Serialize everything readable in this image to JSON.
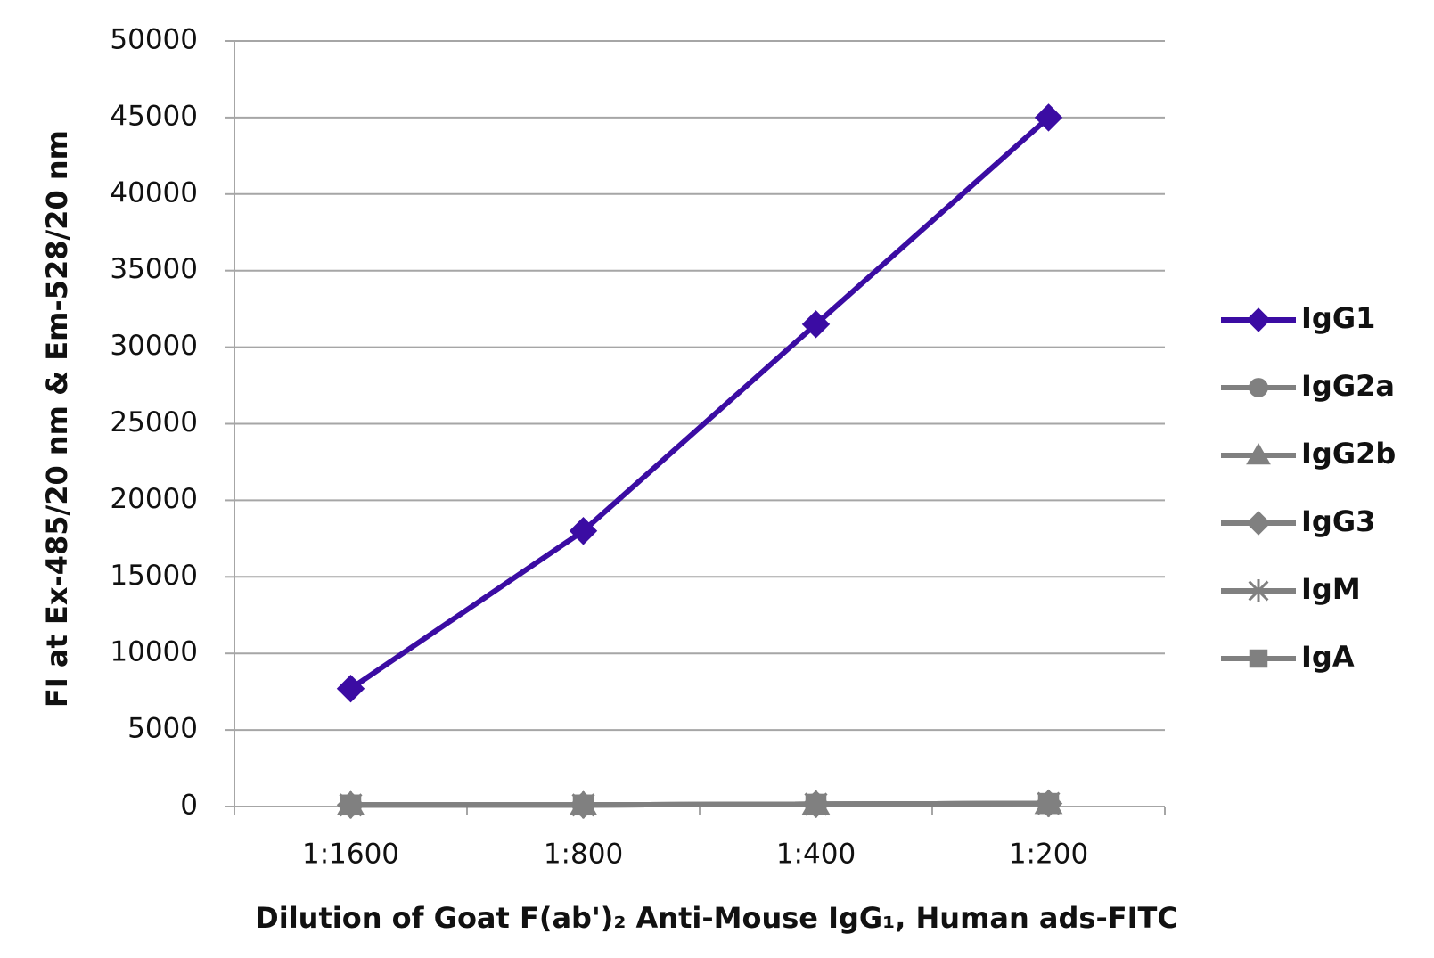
{
  "chart_data": {
    "type": "line",
    "x_label": "Dilution of Goat F(ab')₂ Anti-Mouse IgG₁, Human ads-FITC",
    "y_label": "FI at Ex-485/20 nm & Em-528/20 nm",
    "categories": [
      "1:1600",
      "1:800",
      "1:400",
      "1:200"
    ],
    "series": [
      {
        "name": "IgG1",
        "color": "#3b0ca3",
        "marker": "diamond",
        "values": [
          7700,
          18000,
          31500,
          45000
        ]
      },
      {
        "name": "IgG2a",
        "color": "#808080",
        "marker": "circle",
        "values": [
          100,
          100,
          150,
          200
        ]
      },
      {
        "name": "IgG2b",
        "color": "#808080",
        "marker": "triangle",
        "values": [
          100,
          100,
          150,
          200
        ]
      },
      {
        "name": "IgG3",
        "color": "#808080",
        "marker": "diamond",
        "values": [
          100,
          100,
          150,
          200
        ]
      },
      {
        "name": "IgM",
        "color": "#808080",
        "marker": "asterisk",
        "values": [
          100,
          100,
          150,
          200
        ]
      },
      {
        "name": "IgA",
        "color": "#808080",
        "marker": "square",
        "values": [
          100,
          100,
          150,
          200
        ]
      }
    ],
    "ylim": [
      0,
      50000
    ],
    "yticks": [
      0,
      5000,
      10000,
      15000,
      20000,
      25000,
      30000,
      35000,
      40000,
      45000,
      50000
    ],
    "grid": true,
    "legend": "right"
  }
}
